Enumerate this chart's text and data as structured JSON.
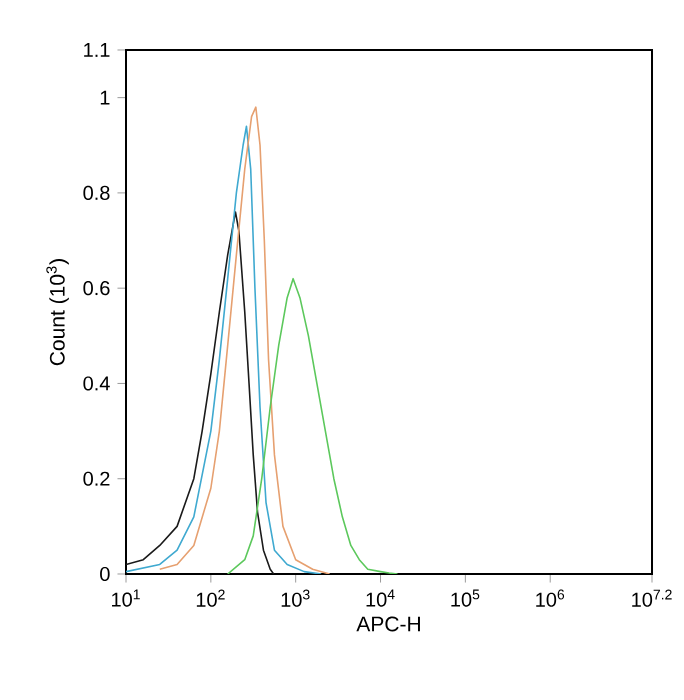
{
  "chart_data": {
    "type": "line",
    "xlabel": "APC-H",
    "ylabel": "Count (10$^{3}$)",
    "log": "x",
    "grid": false,
    "marker": "none",
    "line_style": "solid",
    "xlim": [
      10,
      15848932
    ],
    "ylim": [
      0,
      1.1
    ],
    "xticks": [
      {
        "value": 10,
        "label": "10$^{1}$"
      },
      {
        "value": 100,
        "label": "10$^{2}$"
      },
      {
        "value": 1000,
        "label": "10$^{3}$"
      },
      {
        "value": 10000,
        "label": "10$^{4}$"
      },
      {
        "value": 100000,
        "label": "10$^{5}$"
      },
      {
        "value": 1000000,
        "label": "10$^{6}$"
      },
      {
        "value": 15848932,
        "label": "10$^{7.2}$"
      }
    ],
    "yticks": [
      0,
      0.2,
      0.4,
      0.6,
      0.8,
      1,
      1.1
    ],
    "series": [
      {
        "color": "#1a1a1a",
        "x": [
          10,
          16,
          25,
          40,
          63,
          79,
          100,
          126,
          158,
          195,
          214,
          251,
          282,
          316,
          355,
          417,
          501,
          550
        ],
        "values": [
          0.02,
          0.03,
          0.06,
          0.1,
          0.2,
          0.3,
          0.42,
          0.55,
          0.67,
          0.76,
          0.72,
          0.55,
          0.4,
          0.25,
          0.13,
          0.05,
          0.01,
          0
        ]
      },
      {
        "color": "#3fa9d0",
        "x": [
          10,
          25,
          40,
          63,
          100,
          126,
          158,
          200,
          240,
          263,
          295,
          331,
          380,
          447,
          562,
          794,
          1259,
          1995
        ],
        "values": [
          0.005,
          0.02,
          0.05,
          0.12,
          0.3,
          0.45,
          0.62,
          0.8,
          0.9,
          0.94,
          0.85,
          0.6,
          0.35,
          0.15,
          0.05,
          0.02,
          0.005,
          0
        ]
      },
      {
        "color": "#e6a070",
        "x": [
          25,
          40,
          63,
          100,
          126,
          158,
          200,
          251,
          302,
          339,
          380,
          427,
          479,
          562,
          708,
          1000,
          1585,
          2512
        ],
        "values": [
          0.01,
          0.02,
          0.06,
          0.18,
          0.3,
          0.48,
          0.67,
          0.85,
          0.96,
          0.98,
          0.9,
          0.7,
          0.45,
          0.25,
          0.1,
          0.03,
          0.01,
          0
        ]
      },
      {
        "color": "#5cc85c",
        "x": [
          158,
          251,
          316,
          398,
          501,
          631,
          794,
          933,
          1122,
          1413,
          1778,
          2239,
          2818,
          3548,
          4467,
          5623,
          7079,
          10000,
          12589,
          15849
        ],
        "values": [
          0,
          0.03,
          0.08,
          0.2,
          0.35,
          0.48,
          0.58,
          0.62,
          0.58,
          0.5,
          0.4,
          0.3,
          0.2,
          0.12,
          0.06,
          0.03,
          0.01,
          0.005,
          0.002,
          0
        ]
      }
    ]
  }
}
